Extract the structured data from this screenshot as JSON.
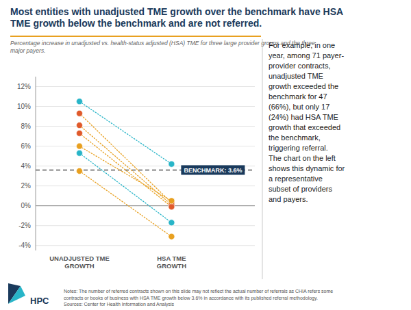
{
  "chart_data": {
    "type": "line",
    "title": "Most entities with unadjusted TME growth over the benchmark have HSA\nTME growth below the benchmark and are not referred.",
    "subtitle": "Percentage increase in unadjusted vs. health-status adjusted (HSA) TME for three large provider groups and the three\nmajor payers.",
    "categories": [
      "UNADJUSTED TME\nGROWTH",
      "HSA TME\nGROWTH"
    ],
    "series": [
      {
        "values": [
          10.5,
          4.2
        ],
        "color": "#28b5c8",
        "colors": [
          "#28b5c8",
          "#28b5c8"
        ],
        "line_style": "dotted",
        "marker": "circle"
      },
      {
        "values": [
          5.3,
          -1.7
        ],
        "color": "#28b5c8",
        "colors": [
          "#28b5c8",
          "#28b5c8"
        ],
        "line_style": "dotted",
        "marker": "circle"
      },
      {
        "values": [
          9.3,
          0.3
        ],
        "color": "#e8a020",
        "colors": [
          "#e05a2b",
          "#e05a2b"
        ],
        "line_style": "dotted",
        "marker": "circle"
      },
      {
        "values": [
          8.1,
          0.1
        ],
        "color": "#e8a020",
        "colors": [
          "#e05a2b",
          "#e05a2b"
        ],
        "line_style": "dotted",
        "marker": "circle"
      },
      {
        "values": [
          7.3,
          -0.1
        ],
        "color": "#e8a020",
        "colors": [
          "#e05a2b",
          "#e05a2b"
        ],
        "line_style": "dotted",
        "marker": "circle"
      },
      {
        "values": [
          6.0,
          0.5
        ],
        "color": "#e8a020",
        "colors": [
          "#e8a020",
          "#e8a020"
        ],
        "line_style": "dotted",
        "marker": "circle"
      },
      {
        "values": [
          3.5,
          -3.1
        ],
        "color": "#e8a020",
        "colors": [
          "#e8a020",
          "#e8a020"
        ],
        "line_style": "dotted",
        "marker": "circle"
      }
    ],
    "ylim": [
      -4.5,
      13.0
    ],
    "yticks": [
      {
        "value": -4,
        "label": "-4%"
      },
      {
        "value": -2,
        "label": "-2%"
      },
      {
        "value": 0,
        "label": "0%"
      },
      {
        "value": 2,
        "label": "2%"
      },
      {
        "value": 4,
        "label": "4%"
      },
      {
        "value": 6,
        "label": "6%"
      },
      {
        "value": 8,
        "label": "8%"
      },
      {
        "value": 10,
        "label": "10%"
      },
      {
        "value": 12,
        "label": "12%"
      }
    ],
    "grid": true,
    "annotations": [
      {
        "y": 3.6,
        "text": "BENCHMARK: 3.6%",
        "line_style": "dashed"
      }
    ],
    "side_text": "For example, in one\nyear, among 71 payer-\nprovider contracts,\nunadjusted TME\ngrowth exceeded the\nbenchmark for 47\n(66%), but only 17\n(24%) had HSA TME\ngrowth that exceeded\nthe benchmark,\ntriggering referral.\n\nThe chart on the left\nshows this dynamic for\na representative\nsubset of providers\nand payers.",
    "note": "Notes: The number of referred contracts shown on this slide may not reflect the actual number of referrals as CHIA refers some\ncontracts or books of business with HSA TME growth below 3.6% in accordance with its published referral methodology.\nSources: Center for Health Information and Analysis",
    "logo": "HPC"
  }
}
